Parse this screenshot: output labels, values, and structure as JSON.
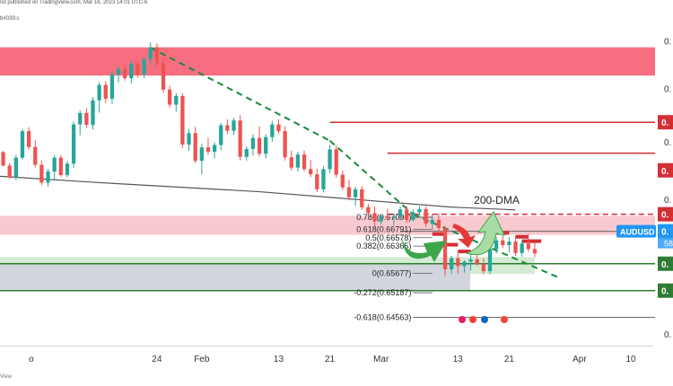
{
  "header": {
    "published": "nd published on TradingView.com, Mar 16, 2023 14:01 UTC-6",
    "symbol_fragment": "b#039;s"
  },
  "footer": {
    "brand": "View"
  },
  "colors": {
    "bull": "#26a69a",
    "bear": "#ef5350",
    "resistance_zone": "#f7667a",
    "pink_zone": "#f8c6cc",
    "support_green": "#c8e6c9",
    "support_grey": "#d1d4dc",
    "red_line": "#d32f35",
    "green_line": "#2e7d32",
    "trend_green": "#1b8a3a",
    "dma": "#555555",
    "arrow_green": "#3da64a",
    "arrow_light_green": "#a8dca4",
    "arrow_red": "#e53935",
    "aud_label": "#2196f3"
  },
  "chart_data": {
    "type": "candlestick",
    "symbol": "AUDUSD",
    "x_tick_labels": [
      "o",
      "24",
      "Feb",
      "13",
      "21",
      "Mar",
      "13",
      "21",
      "Apr",
      "10"
    ],
    "x_tick_days": [
      4,
      24,
      31,
      43,
      51,
      59,
      71,
      79,
      90,
      98
    ],
    "y_tick_labels": [
      "0.",
      "0.",
      "0.",
      "0.",
      "0."
    ],
    "y_tick_values": [
      0.7155,
      0.7035,
      0.69,
      0.6755,
      0.6415
    ],
    "ylim": [
      0.6385,
      0.7195
    ],
    "xlim": [
      -0.5,
      101.5
    ],
    "zones": [
      {
        "name": "resistance",
        "from": 0.70675,
        "to": 0.7139
      },
      {
        "name": "pink",
        "from": 0.6665,
        "to": 0.6713
      },
      {
        "name": "green-support",
        "from": 0.6566,
        "to": 0.6609
      },
      {
        "name": "grey-support",
        "from": 0.6524,
        "to": 0.6592
      }
    ],
    "red_levels": [
      0.69495,
      0.68715,
      0.6674,
      0.6717
    ],
    "green_levels": [
      0.6592,
      0.6524
    ],
    "price_label": "AUDUSD",
    "current_price_text": "0.",
    "countdown_text": "58",
    "level_labels": [
      "0.",
      "0.",
      "0.",
      "0.",
      "0.",
      "0."
    ],
    "ma_label": "200-DMA",
    "fibonacci": [
      {
        "label": "0.786(0.67093)",
        "price": 0.67093
      },
      {
        "label": "0.618(0.66791)",
        "price": 0.66791
      },
      {
        "label": "0.5(0.66578)",
        "price": 0.66578
      },
      {
        "label": "0.382(0.66365)",
        "price": 0.66365
      },
      {
        "label": "0(0.65677)",
        "price": 0.65677
      },
      {
        "label": "-0.272(0.65187)",
        "price": 0.65187
      },
      {
        "label": "-0.618(0.64563)",
        "price": 0.64563
      }
    ],
    "ma200": [
      [
        -0.5,
        0.6813
      ],
      [
        15,
        0.6797
      ],
      [
        40,
        0.6774
      ],
      [
        70,
        0.6735
      ],
      [
        80,
        0.6728
      ]
    ],
    "trendlines": [
      {
        "from": [
          23,
          0.7138
        ],
        "to": [
          51,
          0.6903
        ]
      },
      {
        "from": [
          51,
          0.6903
        ],
        "to": [
          64,
          0.6717
        ]
      },
      {
        "from": [
          64,
          0.6717
        ],
        "to": [
          87,
          0.6555
        ]
      }
    ],
    "candles": [
      [
        0,
        0.6874,
        0.6877,
        0.6838,
        0.684
      ],
      [
        1,
        0.684,
        0.6846,
        0.6806,
        0.681
      ],
      [
        2,
        0.681,
        0.6867,
        0.6803,
        0.686
      ],
      [
        3,
        0.686,
        0.6932,
        0.6855,
        0.6927
      ],
      [
        4,
        0.6927,
        0.6937,
        0.688,
        0.6887
      ],
      [
        5,
        0.6887,
        0.6905,
        0.6835,
        0.6842
      ],
      [
        6,
        0.6842,
        0.6853,
        0.6791,
        0.6797
      ],
      [
        7,
        0.6797,
        0.6832,
        0.6787,
        0.6825
      ],
      [
        8,
        0.6825,
        0.6866,
        0.6804,
        0.686
      ],
      [
        9,
        0.686,
        0.6867,
        0.6812,
        0.6816
      ],
      [
        10,
        0.6816,
        0.6852,
        0.681,
        0.6845
      ],
      [
        11,
        0.6845,
        0.6951,
        0.6834,
        0.6944
      ],
      [
        12,
        0.6944,
        0.698,
        0.6917,
        0.6973
      ],
      [
        13,
        0.6973,
        0.6985,
        0.6935,
        0.6943
      ],
      [
        14,
        0.6943,
        0.7013,
        0.6931,
        0.7005
      ],
      [
        15,
        0.7005,
        0.7051,
        0.6974,
        0.7044
      ],
      [
        16,
        0.7044,
        0.7054,
        0.6998,
        0.7009
      ],
      [
        17,
        0.7009,
        0.7078,
        0.6996,
        0.7071
      ],
      [
        18,
        0.7071,
        0.709,
        0.705,
        0.7084
      ],
      [
        19,
        0.7084,
        0.7101,
        0.7055,
        0.7061
      ],
      [
        20,
        0.7061,
        0.7105,
        0.7048,
        0.7097
      ],
      [
        21,
        0.7097,
        0.7107,
        0.7062,
        0.707
      ],
      [
        22,
        0.707,
        0.7116,
        0.7061,
        0.7109
      ],
      [
        23,
        0.7109,
        0.7151,
        0.7094,
        0.7139
      ],
      [
        24,
        0.7139,
        0.7149,
        0.709,
        0.7099
      ],
      [
        25,
        0.7099,
        0.7111,
        0.7023,
        0.7032
      ],
      [
        26,
        0.7032,
        0.7042,
        0.6987,
        0.6994
      ],
      [
        27,
        0.6994,
        0.7023,
        0.6976,
        0.7016
      ],
      [
        28,
        0.7016,
        0.7023,
        0.6885,
        0.6893
      ],
      [
        29,
        0.6893,
        0.6933,
        0.6877,
        0.6922
      ],
      [
        30,
        0.6922,
        0.6938,
        0.6846,
        0.6852
      ],
      [
        31,
        0.6852,
        0.6895,
        0.6818,
        0.6886
      ],
      [
        32,
        0.6886,
        0.691,
        0.6867,
        0.6875
      ],
      [
        33,
        0.6875,
        0.6899,
        0.6858,
        0.6892
      ],
      [
        34,
        0.6892,
        0.6948,
        0.6879,
        0.6942
      ],
      [
        35,
        0.6942,
        0.6957,
        0.6919,
        0.6928
      ],
      [
        36,
        0.6928,
        0.6961,
        0.6917,
        0.6954
      ],
      [
        37,
        0.6954,
        0.6967,
        0.6853,
        0.6862
      ],
      [
        38,
        0.6862,
        0.6889,
        0.6852,
        0.6882
      ],
      [
        39,
        0.6882,
        0.6919,
        0.6865,
        0.691
      ],
      [
        40,
        0.691,
        0.6939,
        0.6863,
        0.687
      ],
      [
        41,
        0.687,
        0.6919,
        0.6858,
        0.6912
      ],
      [
        42,
        0.6912,
        0.6953,
        0.69,
        0.6944
      ],
      [
        43,
        0.6944,
        0.6957,
        0.692,
        0.6927
      ],
      [
        44,
        0.6927,
        0.6939,
        0.6853,
        0.6861
      ],
      [
        45,
        0.6861,
        0.6878,
        0.6828,
        0.6835
      ],
      [
        46,
        0.6835,
        0.6875,
        0.6825,
        0.6868
      ],
      [
        47,
        0.6868,
        0.6878,
        0.6826,
        0.6831
      ],
      [
        48,
        0.6831,
        0.6854,
        0.6811,
        0.6818
      ],
      [
        49,
        0.6818,
        0.6832,
        0.6773,
        0.678
      ],
      [
        50,
        0.678,
        0.6838,
        0.6772,
        0.6831
      ],
      [
        51,
        0.6831,
        0.6892,
        0.6821,
        0.6881
      ],
      [
        52,
        0.6881,
        0.6892,
        0.681,
        0.6817
      ],
      [
        53,
        0.6817,
        0.6828,
        0.6778,
        0.6785
      ],
      [
        54,
        0.6785,
        0.6804,
        0.6752,
        0.676
      ],
      [
        55,
        0.676,
        0.6787,
        0.6738,
        0.678
      ],
      [
        56,
        0.678,
        0.6788,
        0.6728,
        0.6735
      ],
      [
        57,
        0.6735,
        0.6743,
        0.6714,
        0.672
      ],
      [
        58,
        0.672,
        0.6737,
        0.6685,
        0.6699
      ],
      [
        59,
        0.6699,
        0.6717,
        0.6691,
        0.6712
      ],
      [
        60,
        0.6712,
        0.6731,
        0.6701,
        0.6708
      ],
      [
        61,
        0.6708,
        0.6719,
        0.6689,
        0.6711
      ],
      [
        62,
        0.6711,
        0.6737,
        0.6702,
        0.6729
      ],
      [
        63,
        0.6729,
        0.6738,
        0.6695,
        0.6703
      ],
      [
        64,
        0.6703,
        0.6729,
        0.6698,
        0.6722
      ],
      [
        65,
        0.6722,
        0.6737,
        0.6713,
        0.673
      ],
      [
        66,
        0.673,
        0.6736,
        0.6685,
        0.6693
      ],
      [
        67,
        0.6693,
        0.6718,
        0.6678,
        0.6703
      ],
      [
        68,
        0.6703,
        0.6719,
        0.6675,
        0.6682
      ],
      [
        69,
        0.6682,
        0.6688,
        0.6559,
        0.6578
      ],
      [
        70,
        0.6578,
        0.6612,
        0.6566,
        0.6606
      ],
      [
        71,
        0.6606,
        0.6619,
        0.6567,
        0.6586
      ],
      [
        72,
        0.6586,
        0.6601,
        0.6569,
        0.6597
      ],
      [
        73,
        0.6597,
        0.6617,
        0.6575,
        0.6603
      ],
      [
        74,
        0.6603,
        0.6621,
        0.6586,
        0.6592
      ],
      [
        75,
        0.6592,
        0.6606,
        0.6566,
        0.6573
      ],
      [
        76,
        0.6573,
        0.6638,
        0.6565,
        0.6629
      ],
      [
        77,
        0.6629,
        0.6659,
        0.6618,
        0.6651
      ],
      [
        78,
        0.6651,
        0.6663,
        0.6631,
        0.6639
      ],
      [
        79,
        0.6639,
        0.6659,
        0.6621,
        0.6648
      ],
      [
        80,
        0.6648,
        0.6662,
        0.6612,
        0.6619
      ],
      [
        81,
        0.6619,
        0.665,
        0.661,
        0.6643
      ],
      [
        82,
        0.6643,
        0.6667,
        0.6622,
        0.6629
      ],
      [
        83,
        0.6629,
        0.6646,
        0.6609,
        0.6618
      ]
    ]
  }
}
